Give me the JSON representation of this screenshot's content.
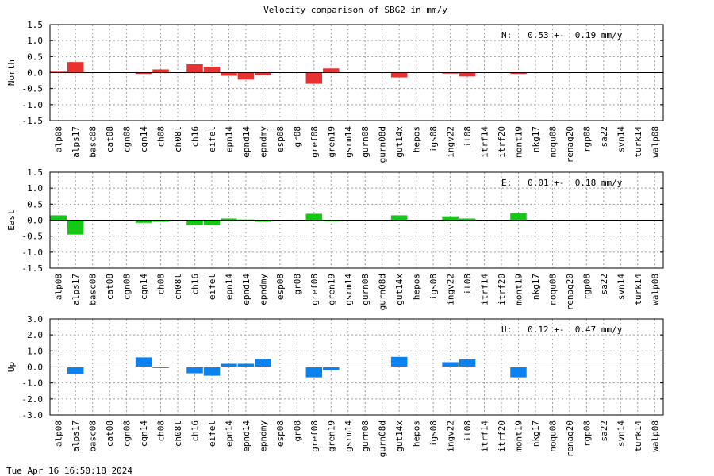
{
  "title": "Velocity comparison of SBG2 in mm/y",
  "timestamp": "Tue Apr 16 16:50:18 2024",
  "chart_data": {
    "type": "bar",
    "categories": [
      "alp08",
      "alps17",
      "basc08",
      "cat08",
      "cgn08",
      "cgn14",
      "ch08",
      "ch08l",
      "ch16",
      "eifel",
      "epn14",
      "epnd14",
      "epndmy",
      "esp08",
      "gr08",
      "gref08",
      "gren19",
      "gsrm14",
      "gurn08",
      "gurn08d",
      "gut14x",
      "hepos",
      "igs08",
      "ingv22",
      "it08",
      "itrf14",
      "itrf20",
      "mont19",
      "nkg17",
      "noqu08",
      "renag20",
      "rgp08",
      "sa22",
      "svn14",
      "turk14",
      "walp08"
    ],
    "panels": [
      {
        "ylabel": "North",
        "ylim": [
          -1.5,
          1.5
        ],
        "yticks": [
          "1.5",
          "1.0",
          "0.5",
          "0.0",
          "-0.5",
          "-1.0",
          "-1.5"
        ],
        "color": "#e83232",
        "annotation": "N:   0.53 +-  0.19 mm/y",
        "values": [
          0.03,
          0.33,
          0,
          0,
          0,
          -0.04,
          0.1,
          0,
          0.26,
          0.18,
          -0.1,
          -0.22,
          -0.08,
          0,
          0,
          -0.35,
          0.13,
          0,
          0,
          0,
          -0.15,
          0,
          0,
          -0.03,
          -0.12,
          0,
          0,
          -0.04,
          0,
          0,
          0,
          0,
          0,
          0,
          0,
          0
        ]
      },
      {
        "ylabel": "East",
        "ylim": [
          -1.5,
          1.5
        ],
        "yticks": [
          "1.5",
          "1.0",
          "0.5",
          "0.0",
          "-0.5",
          "-1.0",
          "-1.5"
        ],
        "color": "#14c814",
        "annotation": "E:   0.01 +-  0.18 mm/y",
        "values": [
          0.15,
          -0.45,
          0,
          0,
          0,
          -0.08,
          -0.05,
          0,
          -0.16,
          -0.16,
          0.05,
          0.02,
          -0.05,
          0,
          0,
          0.2,
          -0.03,
          0,
          0,
          0,
          0.15,
          0,
          0,
          0.12,
          0.05,
          0,
          0,
          0.22,
          0,
          0,
          0,
          0,
          0,
          0,
          0,
          0
        ]
      },
      {
        "ylabel": "Up",
        "ylim": [
          -3.0,
          3.0
        ],
        "yticks": [
          "3.0",
          "2.0",
          "1.0",
          "0.0",
          "-1.0",
          "-2.0",
          "-3.0"
        ],
        "color": "#0a82f0",
        "annotation": "U:   0.12 +-  0.47 mm/y",
        "values": [
          0.03,
          -0.45,
          0,
          0,
          0,
          0.6,
          -0.07,
          0,
          -0.4,
          -0.55,
          0.2,
          0.2,
          0.5,
          0,
          0,
          -0.65,
          -0.2,
          0,
          0,
          0,
          0.63,
          0,
          0,
          0.3,
          0.48,
          0,
          0,
          -0.65,
          0,
          0,
          0,
          0,
          0,
          0,
          0,
          0
        ]
      }
    ]
  }
}
